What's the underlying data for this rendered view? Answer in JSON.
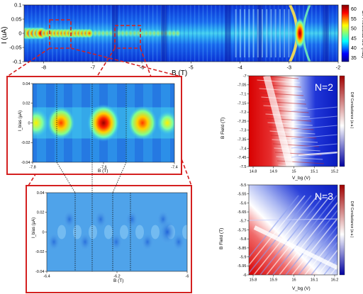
{
  "chart_data": [
    {
      "id": "main",
      "type": "heatmap",
      "xlabel": "B (T)",
      "ylabel": "I (uA)",
      "xlim": [
        -8.4,
        -2
      ],
      "ylim": [
        -0.1,
        0.1
      ],
      "x_ticks": [
        "-8",
        "-7",
        "-6",
        "-5",
        "-4",
        "-3",
        "-2"
      ],
      "y_ticks": [
        "0.1",
        "0.05",
        "0",
        "-0.05",
        "-0.1"
      ],
      "colorbar": {
        "label": "Gr Resistance (kΩ)",
        "ticks": [
          "60",
          "55",
          "50",
          "45",
          "40",
          "35"
        ],
        "range": [
          33,
          62
        ],
        "colormap": "jet"
      },
      "features": [
        {
          "x": -8.3,
          "level": 55
        },
        {
          "x": -7.6,
          "level": 50
        },
        {
          "x": -2.8,
          "level": 62
        }
      ]
    },
    {
      "id": "zoom1",
      "type": "heatmap",
      "xlabel": "B (T)",
      "ylabel": "I_bias (μA)",
      "xlim": [
        -7.8,
        -7.4
      ],
      "ylim": [
        -0.04,
        0.04
      ],
      "x_ticks": [
        "-7.8",
        "-7.6",
        "-7.4"
      ],
      "y_ticks": [
        "0.04",
        "0.02",
        "0",
        "-0.02",
        "-0.04"
      ],
      "peaks_B": [
        -7.72,
        -7.6,
        -7.49
      ]
    },
    {
      "id": "zoom2",
      "type": "heatmap",
      "xlabel": "B (T)",
      "ylabel": "I_bias (μA)",
      "xlim": [
        -6.4,
        -6
      ],
      "ylim": [
        -0.04,
        0.04
      ],
      "x_ticks": [
        "-6.4",
        "-6.2",
        "-6"
      ],
      "y_ticks": [
        "0.04",
        "0.02",
        "0",
        "-0.02",
        "-0.04"
      ]
    },
    {
      "id": "n2",
      "type": "heatmap",
      "annotation": "N=2",
      "xlabel": "V_bg (V)",
      "ylabel": "B Field (T)",
      "xlim": [
        14.75,
        15.25
      ],
      "ylim": [
        -7.5,
        -7
      ],
      "x_ticks": [
        "14.8",
        "14.9",
        "15",
        "15.1",
        "15.2"
      ],
      "y_ticks": [
        "-7",
        "-7.05",
        "-7.1",
        "-7.15",
        "-7.2",
        "-7.25",
        "-7.3",
        "-7.35",
        "-7.4",
        "-7.45",
        "-7.5"
      ],
      "colorbar": {
        "label": "Diff Conductance (a.u.)",
        "colormap": "red-white-blue"
      }
    },
    {
      "id": "n3",
      "type": "heatmap",
      "annotation": "N=3",
      "xlabel": "V_bg (V)",
      "ylabel": "B Field (T)",
      "xlim": [
        15.75,
        16.25
      ],
      "ylim": [
        -6,
        -5.5
      ],
      "x_ticks": [
        "15.8",
        "15.9",
        "16",
        "16.1",
        "16.2"
      ],
      "y_ticks": [
        "-5.5",
        "-5.55",
        "-5.6",
        "-5.65",
        "-5.7",
        "-5.75",
        "-5.8",
        "-5.85",
        "-5.9",
        "-5.95",
        "-6"
      ],
      "colorbar": {
        "label": "Diff Conductance (a.u.)",
        "colormap": "red-white-blue"
      }
    }
  ]
}
